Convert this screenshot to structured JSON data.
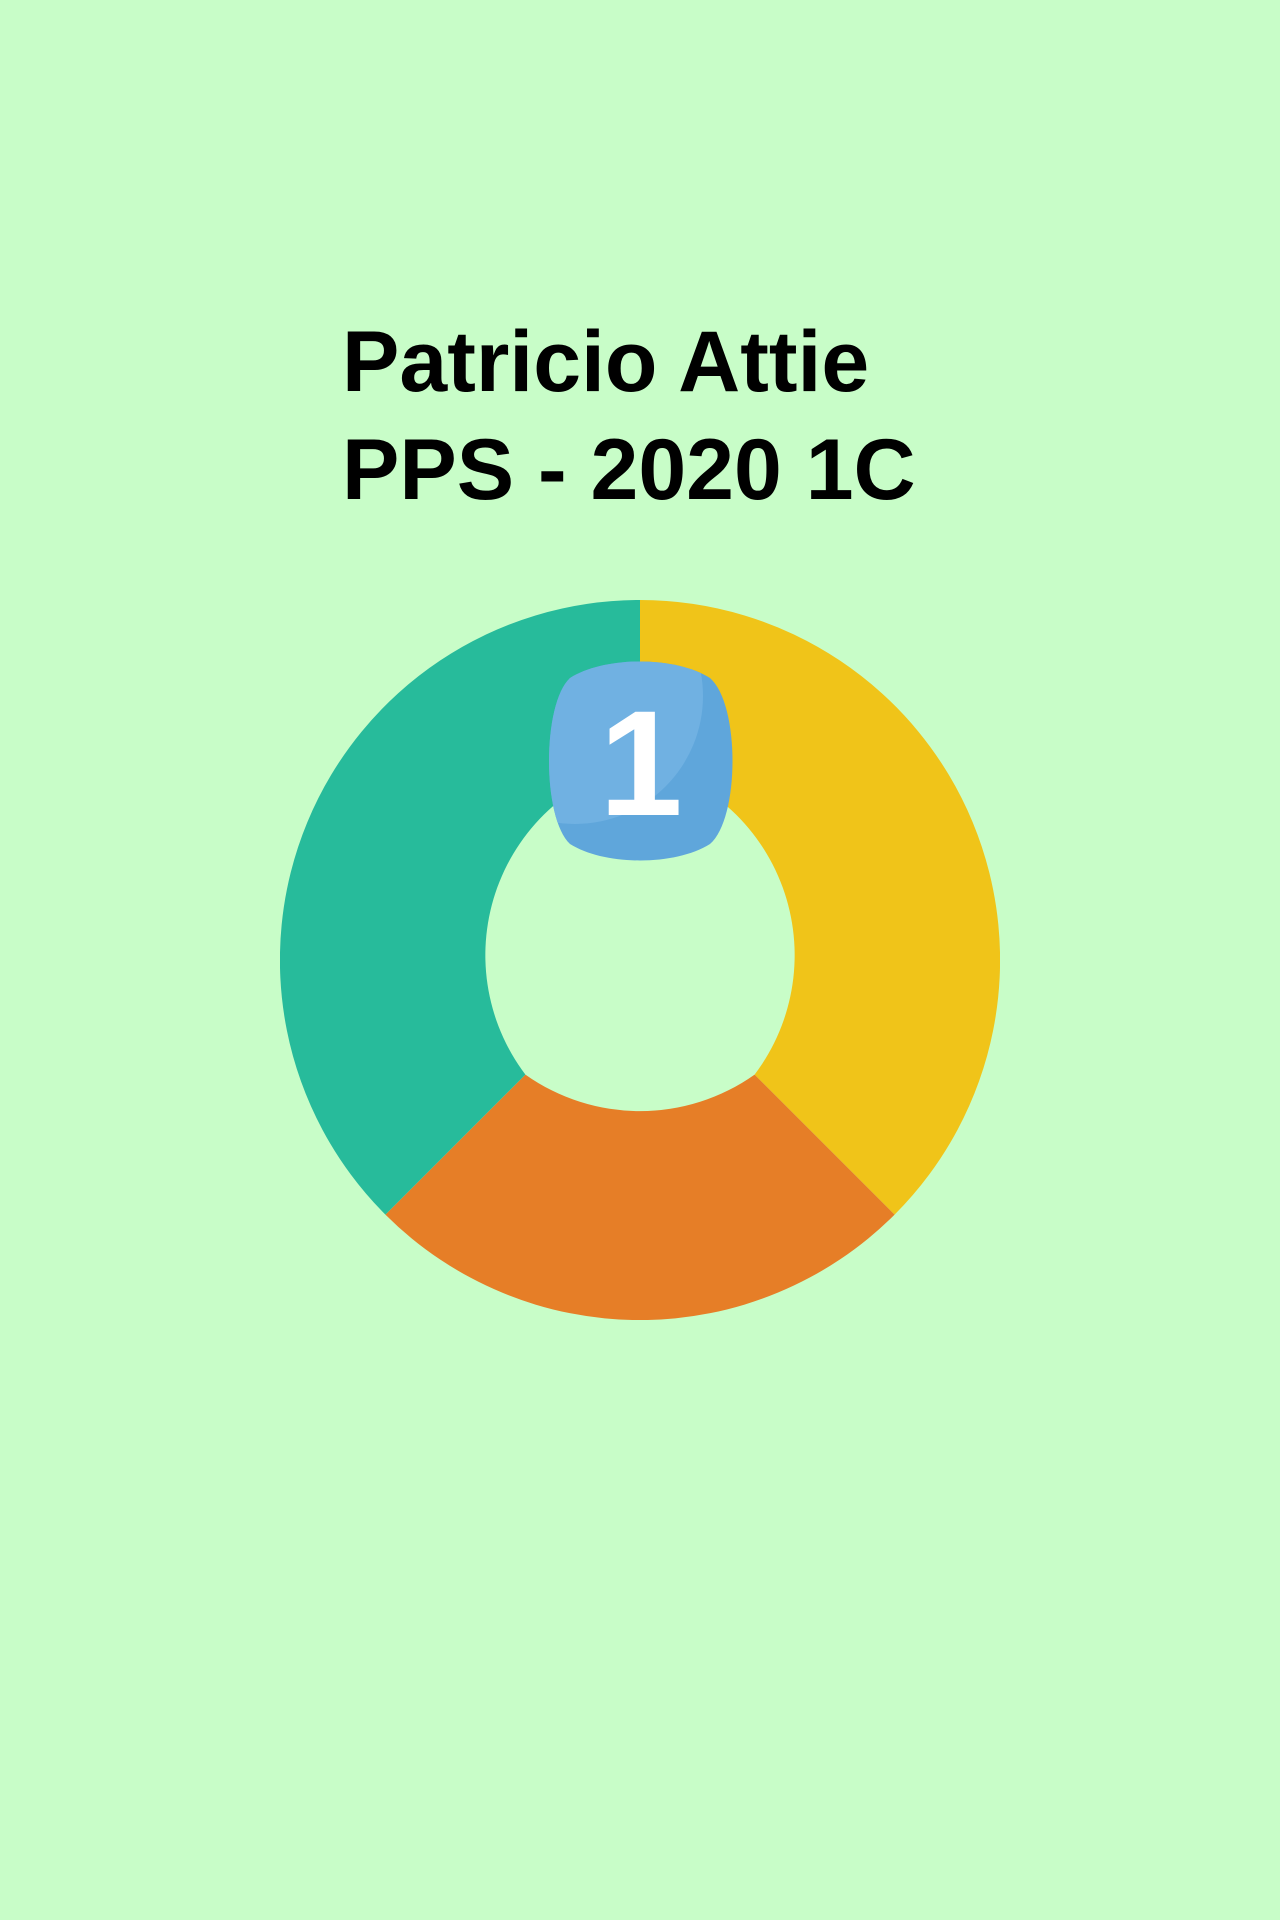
{
  "app": {
    "author_name": "Patricio Attie",
    "course_label": "PPS - 2020 1C"
  },
  "logo": {
    "ring_segments": [
      {
        "name": "yellow-segment",
        "color": "#f0c419"
      },
      {
        "name": "orange-segment",
        "color": "#e67e27"
      },
      {
        "name": "teal-segment",
        "color": "#27bb9b"
      }
    ],
    "badge_icon": "number-one-badge-icon",
    "badge_text": "1",
    "badge_color": "#5fa6db",
    "badge_highlight": "#70b1e2",
    "background_color": "#c8fdc8"
  }
}
